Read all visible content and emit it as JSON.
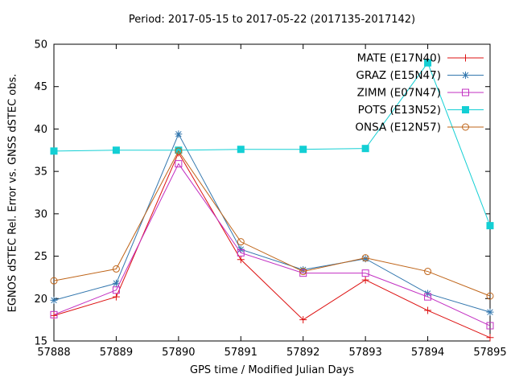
{
  "chart_data": {
    "type": "line",
    "title": "Period: 2017-05-15 to 2017-05-22 (2017135-2017142)",
    "xlabel": "GPS time / Modified Julian Days",
    "ylabel": "EGNOS dSTEC Rel. Error vs. GNSS dSTEC obs.",
    "x": [
      57888,
      57889,
      57890,
      57891,
      57892,
      57893,
      57894,
      57895
    ],
    "xlim": [
      57888,
      57895
    ],
    "ylim": [
      15,
      50
    ],
    "yticks": [
      15,
      20,
      25,
      30,
      35,
      40,
      45,
      50
    ],
    "grid": false,
    "legend_position": "top-right-inside",
    "series": [
      {
        "name": "MATE (E17N40)",
        "color": "#dd1010",
        "marker": "plus",
        "values": [
          18.0,
          20.2,
          37.2,
          24.6,
          17.5,
          22.2,
          18.6,
          15.4
        ]
      },
      {
        "name": "GRAZ (E15N47)",
        "color": "#3377ae",
        "marker": "asterisk",
        "values": [
          19.8,
          21.8,
          39.4,
          25.8,
          23.4,
          24.7,
          20.6,
          18.4
        ]
      },
      {
        "name": "ZIMM (E07N47)",
        "color": "#c22fc2",
        "marker": "open-square",
        "values": [
          18.1,
          21.0,
          35.9,
          25.4,
          23.0,
          23.0,
          20.2,
          16.8
        ]
      },
      {
        "name": "POTS (E13N52)",
        "color": "#13cfd4",
        "marker": "filled-square",
        "values": [
          37.4,
          37.5,
          37.5,
          37.6,
          37.6,
          37.7,
          47.8,
          28.6
        ]
      },
      {
        "name": "ONSA (E12N57)",
        "color": "#bf6418",
        "marker": "open-circle",
        "values": [
          22.1,
          23.5,
          37.4,
          26.7,
          23.2,
          24.8,
          23.2,
          20.3
        ]
      }
    ]
  }
}
